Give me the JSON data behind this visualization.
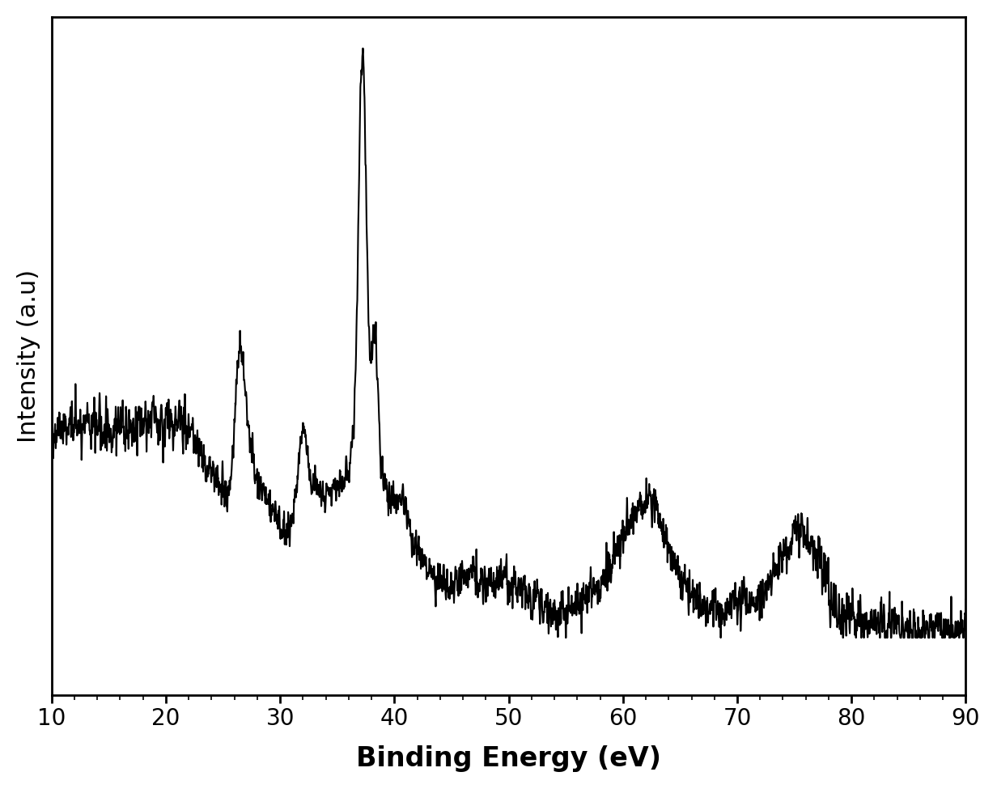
{
  "xlabel": "Binding Energy (eV)",
  "ylabel": "Intensity (a.u)",
  "xlim": [
    10,
    90
  ],
  "ylim": [
    0,
    1.0
  ],
  "x_ticks": [
    10,
    20,
    30,
    40,
    50,
    60,
    70,
    80,
    90
  ],
  "xlabel_fontsize": 24,
  "ylabel_fontsize": 22,
  "tick_fontsize": 20,
  "line_color": "#000000",
  "line_width": 1.5,
  "background_color": "#ffffff",
  "seed": 42
}
